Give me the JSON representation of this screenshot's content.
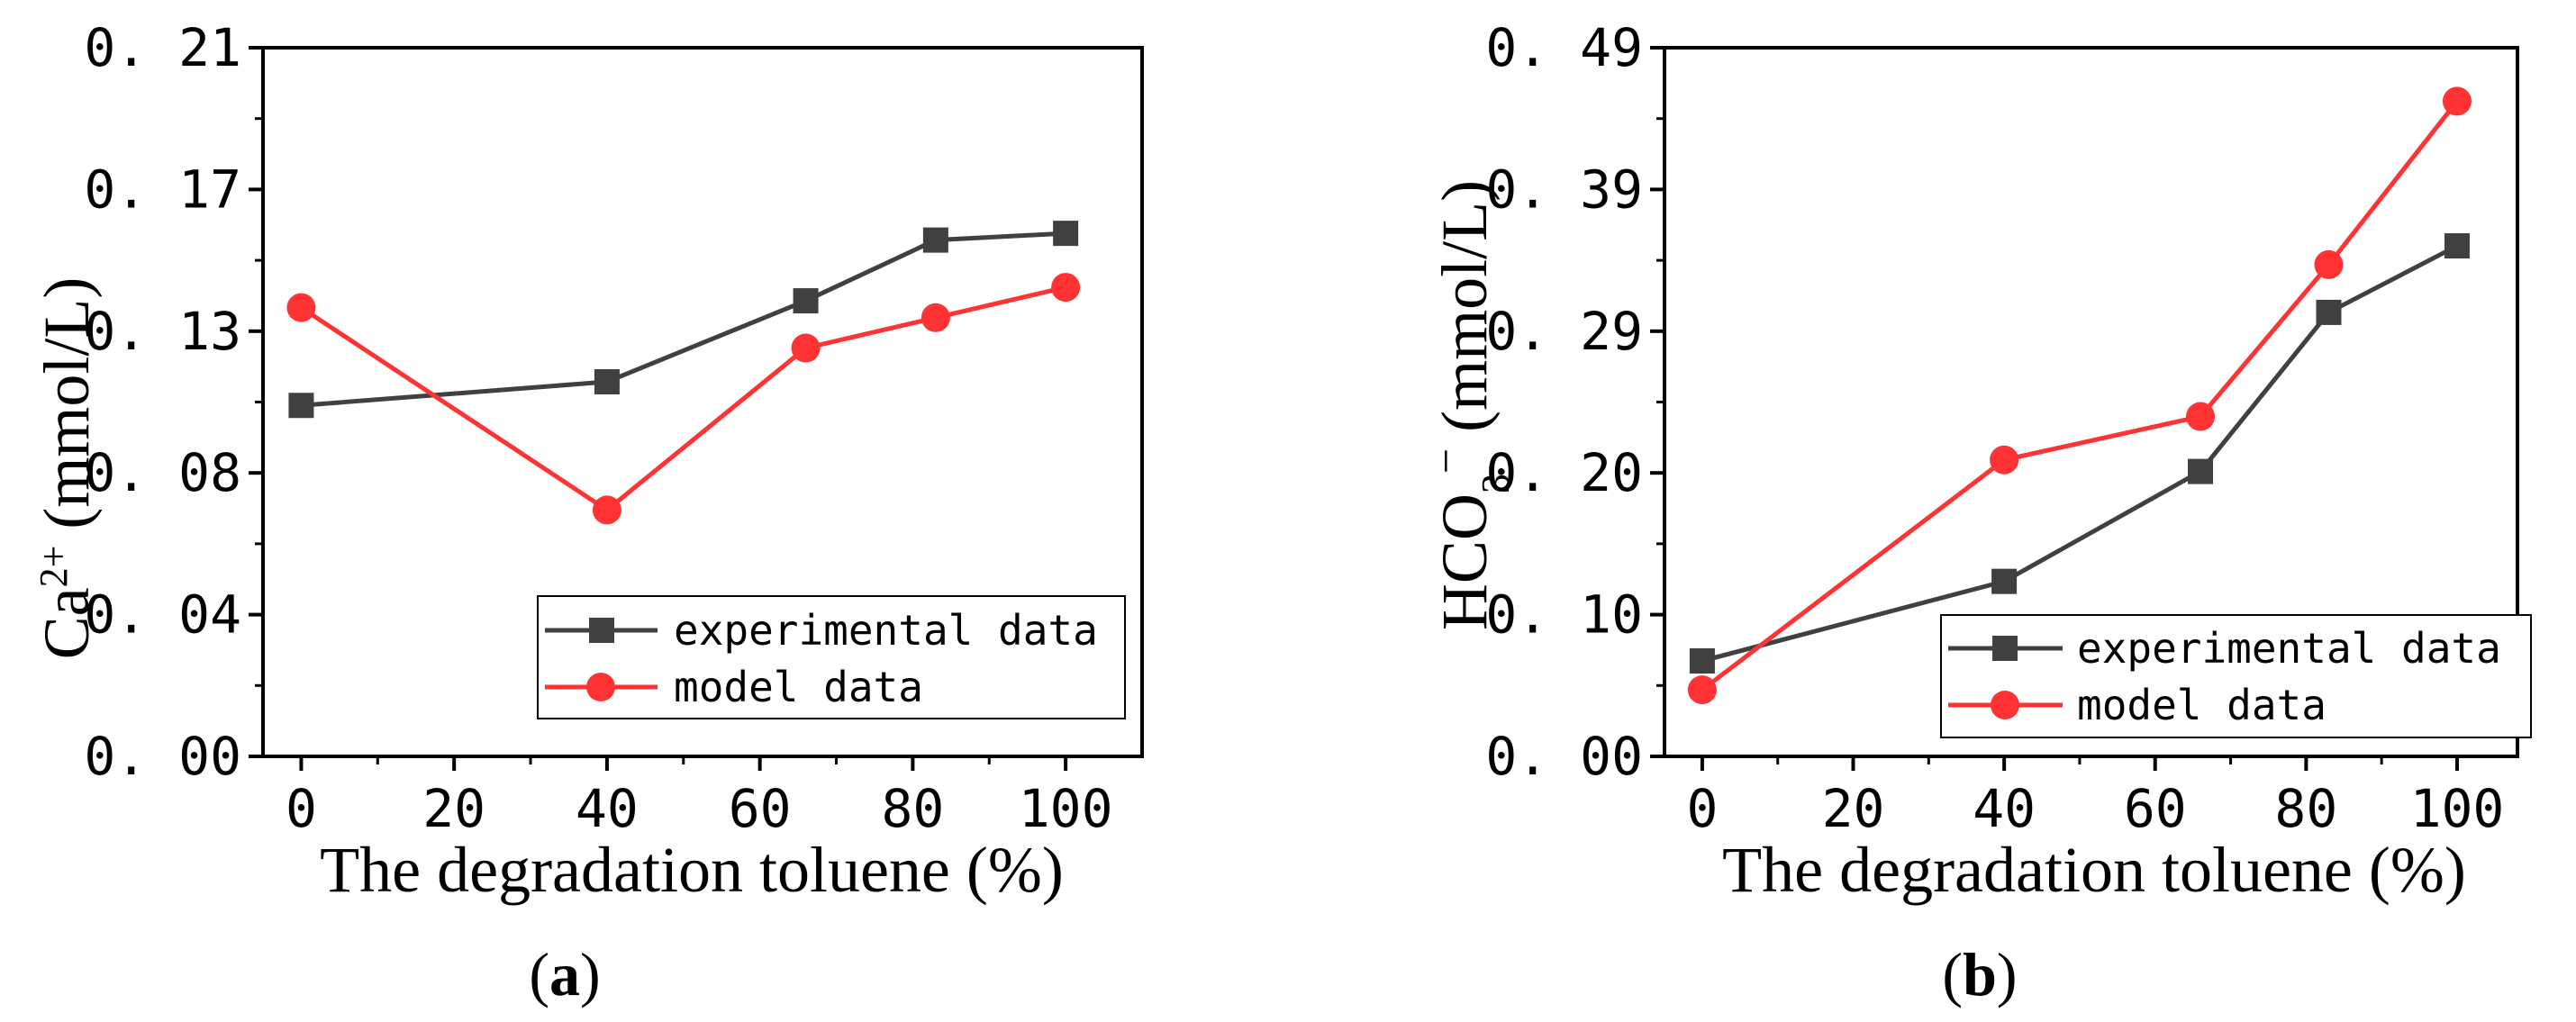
{
  "chart_data": [
    {
      "type": "line",
      "panel_label": "(a)",
      "panel_letter": "a",
      "xlabel": "The degradation toluene (%)",
      "ylabel_base": "Ca",
      "ylabel_sup": "2+",
      "ylabel_unit": " (mmol/L)",
      "xlim": [
        -5,
        110
      ],
      "ylim": [
        0,
        0.21
      ],
      "xticks": [
        "0",
        "20",
        "40",
        "60",
        "80",
        "100"
      ],
      "xtick_values": [
        0,
        20,
        40,
        60,
        80,
        100
      ],
      "yticks": [
        "0. 00",
        "0. 04",
        "0. 08",
        "0. 13",
        "0. 17",
        "0. 21"
      ],
      "ytick_values": [
        0,
        0.042,
        0.084,
        0.126,
        0.168,
        0.21
      ],
      "legend_position": "bottom-right",
      "series": [
        {
          "name": "experimental data",
          "color": "#404040",
          "marker": "square",
          "x": [
            0,
            40,
            66,
            83,
            100
          ],
          "y": [
            0.104,
            0.111,
            0.135,
            0.153,
            0.155
          ]
        },
        {
          "name": "model data",
          "color": "#ff3333",
          "marker": "circle",
          "x": [
            0,
            40,
            66,
            83,
            100
          ],
          "y": [
            0.133,
            0.073,
            0.121,
            0.13,
            0.139
          ]
        }
      ]
    },
    {
      "type": "line",
      "panel_label": "(b)",
      "panel_letter": "b",
      "xlabel": "The degradation toluene (%)",
      "ylabel_base": "HCO",
      "ylabel_sub": "3",
      "ylabel_sup": "−",
      "ylabel_unit": "  (mmol/L)",
      "xlim": [
        -5,
        108
      ],
      "ylim": [
        0,
        0.49
      ],
      "xticks": [
        "0",
        "20",
        "40",
        "60",
        "80",
        "100"
      ],
      "xtick_values": [
        0,
        20,
        40,
        60,
        80,
        100
      ],
      "yticks": [
        "0. 00",
        "0. 10",
        "0. 20",
        "0. 29",
        "0. 39",
        "0. 49"
      ],
      "ytick_values": [
        0,
        0.098,
        0.196,
        0.294,
        0.392,
        0.49
      ],
      "legend_position": "bottom-right",
      "series": [
        {
          "name": "experimental data",
          "color": "#404040",
          "marker": "square",
          "x": [
            0,
            40,
            66,
            83,
            100
          ],
          "y": [
            0.066,
            0.121,
            0.197,
            0.307,
            0.353
          ]
        },
        {
          "name": "model data",
          "color": "#ff3333",
          "marker": "circle",
          "x": [
            0,
            40,
            66,
            83,
            100
          ],
          "y": [
            0.046,
            0.205,
            0.235,
            0.34,
            0.453
          ]
        }
      ]
    }
  ]
}
